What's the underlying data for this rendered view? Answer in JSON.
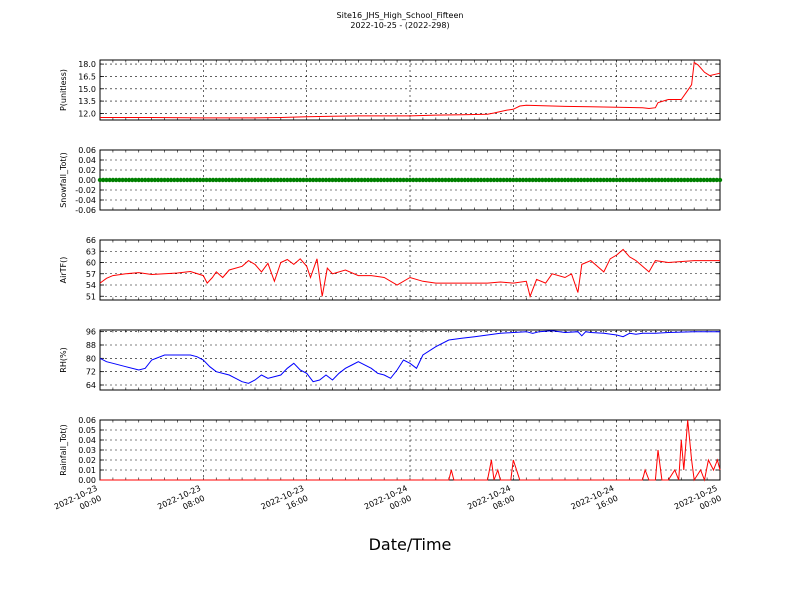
{
  "title_line1": "Site16_JHS_High_School_Fifteen",
  "title_line2": "2022-10-25 - (2022-298)",
  "chart_data": {
    "type": "line",
    "xlabel": "Date/Time",
    "x_range_hours": [
      0,
      48
    ],
    "x_ticks": [
      {
        "h": 0,
        "l1": "2022-10-23",
        "l2": "00:00"
      },
      {
        "h": 8,
        "l1": "2022-10-23",
        "l2": "08:00"
      },
      {
        "h": 16,
        "l1": "2022-10-23",
        "l2": "16:00"
      },
      {
        "h": 24,
        "l1": "2022-10-24",
        "l2": "00:00"
      },
      {
        "h": 32,
        "l1": "2022-10-24",
        "l2": "08:00"
      },
      {
        "h": 40,
        "l1": "2022-10-24",
        "l2": "16:00"
      },
      {
        "h": 48,
        "l1": "2022-10-25",
        "l2": "00:00"
      }
    ],
    "grid": true,
    "panels": [
      {
        "ylabel": "P(unitless)",
        "color": "#ff0000",
        "style": "line",
        "ylim": [
          11.2,
          18.5
        ],
        "yticks": [
          "12.0",
          "13.5",
          "15.0",
          "16.5",
          "18.0"
        ],
        "ytick_vals": [
          12.0,
          13.5,
          15.0,
          16.5,
          18.0
        ],
        "points": [
          [
            0,
            11.5
          ],
          [
            4,
            11.5
          ],
          [
            8,
            11.45
          ],
          [
            12,
            11.45
          ],
          [
            14,
            11.5
          ],
          [
            16,
            11.6
          ],
          [
            18,
            11.65
          ],
          [
            20,
            11.7
          ],
          [
            22,
            11.7
          ],
          [
            24,
            11.7
          ],
          [
            25,
            11.75
          ],
          [
            26,
            11.8
          ],
          [
            28,
            11.85
          ],
          [
            30,
            11.9
          ],
          [
            30.5,
            12.05
          ],
          [
            31.5,
            12.4
          ],
          [
            32,
            12.5
          ],
          [
            32.5,
            12.9
          ],
          [
            33,
            13.0
          ],
          [
            34,
            12.95
          ],
          [
            36,
            12.85
          ],
          [
            38,
            12.8
          ],
          [
            40,
            12.75
          ],
          [
            42,
            12.7
          ],
          [
            42.5,
            12.6
          ],
          [
            43,
            12.7
          ],
          [
            43.2,
            13.3
          ],
          [
            44,
            13.7
          ],
          [
            45,
            13.7
          ],
          [
            45.5,
            14.8
          ],
          [
            45.8,
            15.5
          ],
          [
            46.0,
            18.2
          ],
          [
            46.3,
            17.9
          ],
          [
            46.8,
            17.0
          ],
          [
            47.2,
            16.6
          ],
          [
            48,
            16.9
          ]
        ]
      },
      {
        "ylabel": "Snowfall_Tot()",
        "color": "#008000",
        "style": "markers",
        "ylim": [
          -0.06,
          0.06
        ],
        "yticks": [
          "-0.06",
          "-0.04",
          "-0.02",
          "0.00",
          "0.02",
          "0.04",
          "0.06"
        ],
        "ytick_vals": [
          -0.06,
          -0.04,
          -0.02,
          0.0,
          0.02,
          0.04,
          0.06
        ],
        "constant": 0.0
      },
      {
        "ylabel": "AirTF()",
        "color": "#ff0000",
        "style": "line",
        "ylim": [
          50,
          66
        ],
        "yticks": [
          "51",
          "54",
          "57",
          "60",
          "63",
          "66"
        ],
        "ytick_vals": [
          51,
          54,
          57,
          60,
          63,
          66
        ],
        "points": [
          [
            0,
            54.5
          ],
          [
            0.5,
            55.8
          ],
          [
            1,
            56.5
          ],
          [
            2,
            57.0
          ],
          [
            3,
            57.3
          ],
          [
            4,
            56.8
          ],
          [
            5,
            57.0
          ],
          [
            6,
            57.2
          ],
          [
            7,
            57.6
          ],
          [
            8,
            56.5
          ],
          [
            8.3,
            54.5
          ],
          [
            8.7,
            56.0
          ],
          [
            9,
            57.5
          ],
          [
            9.5,
            56.0
          ],
          [
            10,
            58.0
          ],
          [
            11,
            59.0
          ],
          [
            11.5,
            60.5
          ],
          [
            12,
            59.5
          ],
          [
            12.5,
            57.5
          ],
          [
            13,
            59.8
          ],
          [
            13.5,
            55.0
          ],
          [
            14,
            60.0
          ],
          [
            14.5,
            60.8
          ],
          [
            15,
            59.5
          ],
          [
            15.5,
            61.0
          ],
          [
            16,
            59.0
          ],
          [
            16.3,
            56.0
          ],
          [
            16.8,
            61.0
          ],
          [
            17.2,
            51.0
          ],
          [
            17.6,
            58.5
          ],
          [
            18,
            57.0
          ],
          [
            19,
            58.0
          ],
          [
            20,
            56.5
          ],
          [
            21,
            56.5
          ],
          [
            22,
            56.0
          ],
          [
            23,
            54.0
          ],
          [
            24,
            56.0
          ],
          [
            25,
            55.0
          ],
          [
            26,
            54.5
          ],
          [
            28,
            54.5
          ],
          [
            30,
            54.5
          ],
          [
            31,
            54.8
          ],
          [
            32,
            54.5
          ],
          [
            33,
            55.0
          ],
          [
            33.3,
            51.0
          ],
          [
            33.8,
            55.5
          ],
          [
            34.5,
            54.5
          ],
          [
            35,
            57.0
          ],
          [
            36,
            56.0
          ],
          [
            36.5,
            57.0
          ],
          [
            37,
            52.0
          ],
          [
            37.3,
            59.5
          ],
          [
            38,
            60.5
          ],
          [
            38.5,
            59.0
          ],
          [
            39,
            57.5
          ],
          [
            39.5,
            61.0
          ],
          [
            40,
            62.0
          ],
          [
            40.5,
            63.5
          ],
          [
            41,
            61.5
          ],
          [
            41.5,
            60.5
          ],
          [
            42,
            59.0
          ],
          [
            42.5,
            57.5
          ],
          [
            43,
            60.5
          ],
          [
            44,
            60.0
          ],
          [
            46,
            60.5
          ],
          [
            48,
            60.5
          ]
        ]
      },
      {
        "ylabel": "RH(%)",
        "color": "#0000ff",
        "style": "line",
        "ylim": [
          61,
          97
        ],
        "yticks": [
          "64",
          "72",
          "80",
          "88",
          "96"
        ],
        "ytick_vals": [
          64,
          72,
          80,
          88,
          96
        ],
        "points": [
          [
            0,
            80
          ],
          [
            0.5,
            78
          ],
          [
            1,
            77
          ],
          [
            2,
            75
          ],
          [
            3,
            73
          ],
          [
            3.5,
            74
          ],
          [
            4,
            79
          ],
          [
            5,
            82
          ],
          [
            6,
            82
          ],
          [
            7,
            82
          ],
          [
            7.5,
            81
          ],
          [
            8,
            79
          ],
          [
            8.5,
            75
          ],
          [
            9,
            72
          ],
          [
            10,
            70
          ],
          [
            10.5,
            68
          ],
          [
            11,
            66
          ],
          [
            11.5,
            65
          ],
          [
            12,
            67
          ],
          [
            12.5,
            70
          ],
          [
            13,
            68
          ],
          [
            14,
            70
          ],
          [
            14.5,
            74
          ],
          [
            15,
            77
          ],
          [
            15.5,
            73
          ],
          [
            16,
            71
          ],
          [
            16.5,
            66
          ],
          [
            17,
            67
          ],
          [
            17.5,
            70
          ],
          [
            18,
            67
          ],
          [
            18.5,
            71
          ],
          [
            19,
            74
          ],
          [
            19.5,
            76
          ],
          [
            20,
            78
          ],
          [
            21,
            74
          ],
          [
            21.5,
            71
          ],
          [
            22,
            70
          ],
          [
            22.5,
            68
          ],
          [
            23,
            73
          ],
          [
            23.5,
            79
          ],
          [
            24,
            77
          ],
          [
            24.5,
            74
          ],
          [
            25,
            82
          ],
          [
            26,
            87
          ],
          [
            27,
            91
          ],
          [
            28,
            92
          ],
          [
            29,
            93
          ],
          [
            30,
            94
          ],
          [
            31,
            95
          ],
          [
            32,
            95.5
          ],
          [
            33,
            96
          ],
          [
            33.5,
            95
          ],
          [
            34,
            96
          ],
          [
            35,
            96.5
          ],
          [
            36,
            95.5
          ],
          [
            37,
            96
          ],
          [
            37.3,
            93.5
          ],
          [
            37.6,
            96
          ],
          [
            38,
            95.5
          ],
          [
            39,
            95
          ],
          [
            40,
            94
          ],
          [
            40.5,
            93
          ],
          [
            41,
            95
          ],
          [
            41.5,
            94.5
          ],
          [
            42,
            95
          ],
          [
            43,
            95
          ],
          [
            44,
            95.5
          ],
          [
            46,
            96
          ],
          [
            48,
            96
          ]
        ]
      },
      {
        "ylabel": "Rainfall_Tot()",
        "color": "#ff0000",
        "style": "line",
        "ylim": [
          0,
          0.06
        ],
        "yticks": [
          "0.00",
          "0.01",
          "0.02",
          "0.03",
          "0.04",
          "0.05",
          "0.06"
        ],
        "ytick_vals": [
          0,
          0.01,
          0.02,
          0.03,
          0.04,
          0.05,
          0.06
        ],
        "points": [
          [
            0,
            0
          ],
          [
            27,
            0
          ],
          [
            27.2,
            0.01
          ],
          [
            27.4,
            0
          ],
          [
            30,
            0
          ],
          [
            30.3,
            0.02
          ],
          [
            30.5,
            0
          ],
          [
            30.8,
            0.01
          ],
          [
            31,
            0
          ],
          [
            31.8,
            0
          ],
          [
            32,
            0.02
          ],
          [
            32.5,
            0
          ],
          [
            42,
            0
          ],
          [
            42.2,
            0.01
          ],
          [
            42.5,
            0
          ],
          [
            43,
            0
          ],
          [
            43.2,
            0.03
          ],
          [
            43.5,
            0
          ],
          [
            44,
            0
          ],
          [
            44.5,
            0.01
          ],
          [
            44.8,
            0
          ],
          [
            45,
            0.04
          ],
          [
            45.2,
            0.01
          ],
          [
            45.5,
            0.06
          ],
          [
            45.8,
            0.02
          ],
          [
            46,
            0
          ],
          [
            46.5,
            0.01
          ],
          [
            46.8,
            0
          ],
          [
            47.1,
            0.02
          ],
          [
            47.5,
            0.01
          ],
          [
            47.8,
            0.02
          ],
          [
            48,
            0.01
          ]
        ]
      }
    ]
  }
}
